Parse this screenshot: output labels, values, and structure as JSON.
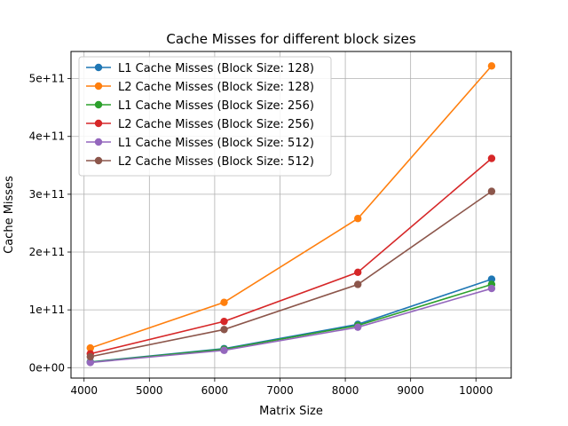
{
  "chart_data": {
    "type": "line",
    "title": "Cache Misses for different block sizes",
    "xlabel": "Matrix Size",
    "ylabel": "Cache Misses",
    "x": [
      4096,
      6144,
      8192,
      10240
    ],
    "xlim": [
      3800,
      10540
    ],
    "ylim": [
      -18000000000.0,
      547000000000.0
    ],
    "xticks": [
      4000,
      5000,
      6000,
      7000,
      8000,
      9000,
      10000
    ],
    "xtick_labels": [
      "4000",
      "5000",
      "6000",
      "7000",
      "8000",
      "9000",
      "10000"
    ],
    "yticks": [
      0,
      100000000000.0,
      200000000000.0,
      300000000000.0,
      400000000000.0,
      500000000000.0
    ],
    "ytick_labels": [
      "0e+00",
      "1e+11",
      "2e+11",
      "3e+11",
      "4e+11",
      "5e+11"
    ],
    "grid": true,
    "legend_position": "top-left",
    "series": [
      {
        "name": "L1 Cache Misses (Block Size: 128)",
        "color": "#1f77b4",
        "values": [
          10000000000.0,
          33000000000.0,
          75000000000.0,
          153000000000.0
        ]
      },
      {
        "name": "L2 Cache Misses (Block Size: 128)",
        "color": "#ff7f0e",
        "values": [
          34000000000.0,
          113000000000.0,
          258000000000.0,
          522000000000.0
        ]
      },
      {
        "name": "L1 Cache Misses (Block Size: 256)",
        "color": "#2ca02c",
        "values": [
          9500000000.0,
          32000000000.0,
          73000000000.0,
          144000000000.0
        ]
      },
      {
        "name": "L2 Cache Misses (Block Size: 256)",
        "color": "#d62728",
        "values": [
          24000000000.0,
          80000000000.0,
          165000000000.0,
          362000000000.0
        ]
      },
      {
        "name": "L1 Cache Misses (Block Size: 512)",
        "color": "#9467bd",
        "values": [
          9000000000.0,
          30000000000.0,
          70000000000.0,
          137000000000.0
        ]
      },
      {
        "name": "L2 Cache Misses (Block Size: 512)",
        "color": "#8c564b",
        "values": [
          19000000000.0,
          66000000000.0,
          144000000000.0,
          305000000000.0
        ]
      }
    ]
  }
}
